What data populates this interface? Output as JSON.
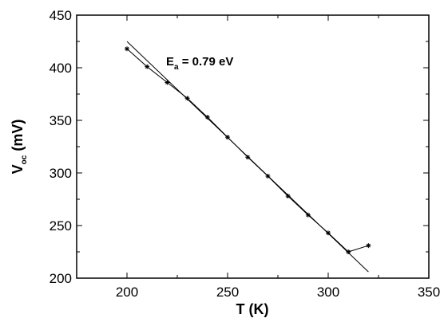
{
  "chart_data": {
    "type": "line",
    "title": "",
    "xlabel": "T (K)",
    "ylabel_main": "V",
    "ylabel_sub": "oc",
    "ylabel_unit": " (mV)",
    "xlim": [
      175,
      350
    ],
    "ylim": [
      200,
      450
    ],
    "xticks": [
      200,
      250,
      300,
      350
    ],
    "yticks": [
      200,
      250,
      300,
      350,
      400,
      450
    ],
    "grid": false,
    "series": [
      {
        "kind": "data",
        "marker": "star",
        "x": [
          200,
          210,
          220,
          230,
          240,
          250,
          260,
          270,
          280,
          290,
          300,
          310,
          320
        ],
        "y": [
          418,
          401,
          386,
          371,
          353,
          334,
          315,
          297,
          278,
          260,
          243,
          225,
          231
        ]
      },
      {
        "kind": "fit",
        "x": [
          200,
          320
        ],
        "y": [
          425,
          206
        ]
      }
    ],
    "annotation": {
      "main": "E",
      "sub": "a",
      "rest": " = 0.79 eV",
      "x": 210,
      "y": 410
    }
  }
}
